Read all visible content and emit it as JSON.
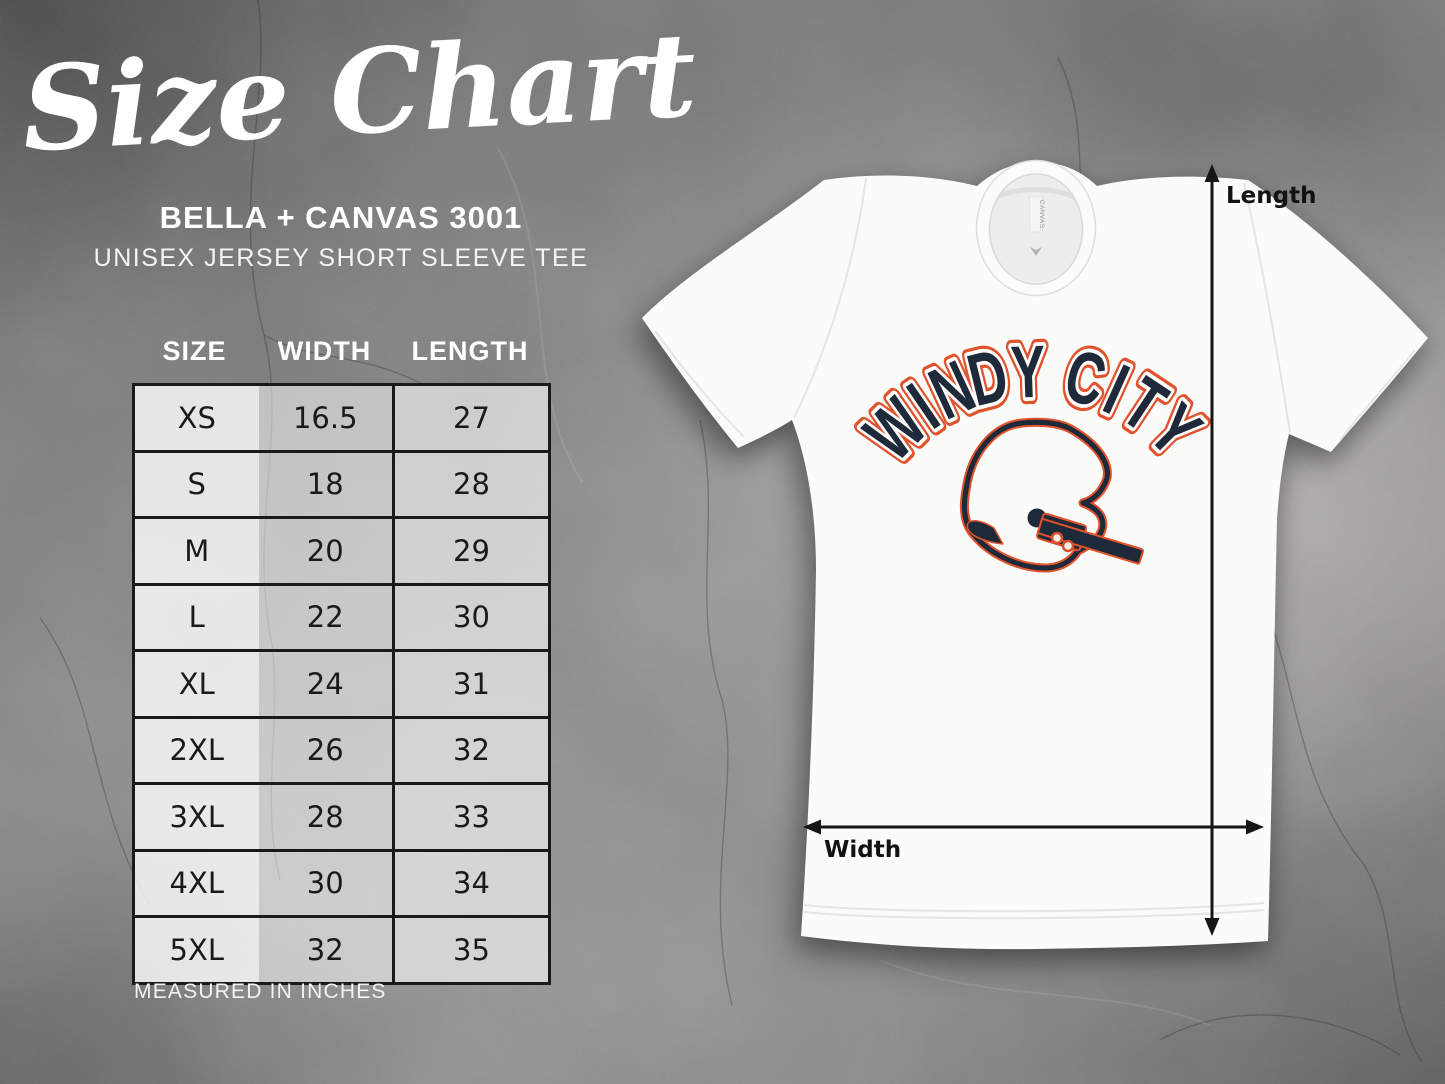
{
  "header": {
    "title": "Size Chart",
    "brand": "BELLA + CANVAS 3001",
    "product": "UNISEX JERSEY SHORT SLEEVE TEE"
  },
  "size_table": {
    "columns": [
      "SIZE",
      "WIDTH",
      "LENGTH"
    ],
    "rows": [
      {
        "size": "XS",
        "width": "16.5",
        "length": "27"
      },
      {
        "size": "S",
        "width": "18",
        "length": "28"
      },
      {
        "size": "M",
        "width": "20",
        "length": "29"
      },
      {
        "size": "L",
        "width": "22",
        "length": "30"
      },
      {
        "size": "XL",
        "width": "24",
        "length": "31"
      },
      {
        "size": "2XL",
        "width": "26",
        "length": "32"
      },
      {
        "size": "3XL",
        "width": "28",
        "length": "33"
      },
      {
        "size": "4XL",
        "width": "30",
        "length": "34"
      },
      {
        "size": "5XL",
        "width": "32",
        "length": "35"
      }
    ],
    "footnote": "MEASURED IN INCHES"
  },
  "shirt": {
    "design_text": "WINDY CITY",
    "neck_label": "CANVAS.",
    "length_label": "Length",
    "width_label": "Width"
  },
  "colors": {
    "design_navy": "#1e2939",
    "design_orange": "#e0532d",
    "shirt_white": "#fbfbfa",
    "arrow_black": "#161616"
  }
}
